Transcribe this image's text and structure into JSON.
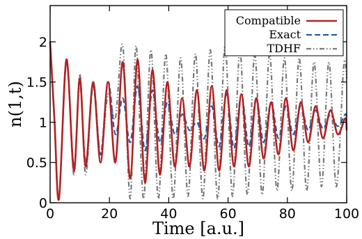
{
  "chart_data": {
    "type": "line",
    "title": "",
    "xlabel": "Time [a.u.]",
    "ylabel": "n(1,t)",
    "xlim": [
      0,
      100
    ],
    "ylim": [
      0,
      2.45
    ],
    "xticks": [
      0,
      20,
      40,
      60,
      80,
      100
    ],
    "xtick_labels": [
      "0",
      "20",
      "40",
      "60",
      "80",
      "100"
    ],
    "yticks": [
      0,
      0.5,
      1,
      1.5,
      2
    ],
    "ytick_labels": [
      "0",
      "0.5",
      "1",
      "1.5",
      "2"
    ],
    "grid": false,
    "legend_position": "top-right",
    "series": [
      {
        "name": "TDHF",
        "color": "#7a7a7a",
        "style": "dash-dot-dot",
        "x": [
          0,
          1.5,
          3,
          5.5,
          8,
          10,
          12,
          14.5,
          17,
          19.5,
          22,
          24.5,
          27,
          29,
          31.5,
          34,
          36.5,
          39,
          41.5,
          44,
          46.5,
          49,
          51.5,
          54,
          56.5,
          59,
          61.5,
          64,
          66.5,
          69,
          71.5,
          74,
          76.5,
          79,
          81.5,
          84,
          86.5,
          89,
          91.5,
          94,
          96.5,
          99,
          100
        ],
        "y": [
          2.0,
          1.0,
          0.05,
          1.78,
          0.35,
          1.6,
          0.35,
          1.5,
          0.6,
          1.35,
          1.05,
          1.95,
          0.05,
          1.95,
          0.05,
          1.9,
          0.05,
          1.85,
          0.05,
          1.8,
          0.08,
          1.85,
          0.05,
          1.9,
          0.05,
          1.95,
          0.08,
          1.9,
          0.1,
          1.85,
          0.1,
          1.85,
          0.15,
          1.8,
          0.15,
          1.8,
          0.15,
          1.75,
          0.2,
          1.75,
          0.2,
          1.7,
          1.55
        ]
      },
      {
        "name": "Exact",
        "color": "#1f5fa8",
        "style": "dashed",
        "x": [
          0,
          1.5,
          3,
          5.5,
          8,
          10,
          12,
          14.5,
          17,
          19.5,
          22,
          24.5,
          27,
          29.5,
          32,
          34.5,
          37,
          39.5,
          42,
          44.5,
          47,
          49.5,
          52,
          54.5,
          57,
          59.5,
          62,
          64.5,
          67,
          69.5,
          72,
          74.5,
          77,
          79.5,
          82,
          84.5,
          87,
          89.5,
          92,
          94.5,
          97,
          99.5,
          100
        ],
        "y": [
          2.0,
          1.0,
          0.05,
          1.75,
          0.45,
          1.5,
          0.5,
          1.45,
          0.6,
          1.5,
          0.85,
          1.3,
          0.75,
          1.45,
          0.65,
          1.4,
          0.75,
          1.25,
          0.85,
          1.1,
          0.9,
          1.0,
          0.8,
          1.2,
          0.7,
          1.35,
          0.68,
          1.35,
          0.7,
          1.3,
          0.75,
          1.25,
          0.8,
          1.2,
          0.85,
          1.2,
          0.9,
          1.15,
          0.92,
          1.1,
          0.95,
          1.1,
          1.05
        ]
      },
      {
        "name": "Compatible",
        "color": "#b22222",
        "style": "solid",
        "x": [
          0,
          1.5,
          3,
          5.5,
          8,
          10,
          12,
          14.5,
          17,
          19.5,
          22,
          24.5,
          27,
          29.5,
          32,
          34.5,
          37,
          39.5,
          42,
          44.5,
          47,
          49.5,
          52,
          54.5,
          57,
          59.5,
          62,
          64.5,
          67,
          69.5,
          72,
          74.5,
          77,
          79.5,
          82,
          84.5,
          87,
          89.5,
          92,
          94.5,
          97,
          99.5,
          100
        ],
        "y": [
          2.0,
          1.0,
          0.05,
          1.78,
          0.4,
          1.55,
          0.45,
          1.5,
          0.5,
          1.5,
          0.5,
          1.75,
          0.3,
          1.78,
          0.25,
          1.65,
          0.35,
          1.5,
          0.45,
          1.3,
          0.45,
          1.4,
          0.4,
          1.45,
          0.4,
          1.4,
          0.45,
          1.35,
          0.45,
          1.3,
          0.55,
          1.25,
          0.6,
          1.3,
          0.65,
          1.25,
          0.75,
          1.2,
          0.8,
          1.15,
          0.85,
          1.05,
          0.9
        ]
      }
    ]
  }
}
